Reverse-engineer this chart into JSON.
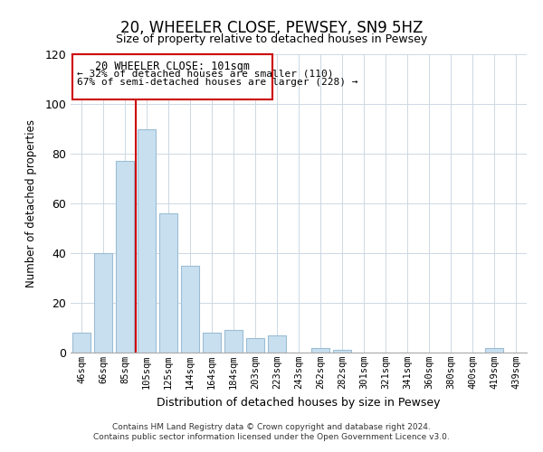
{
  "title": "20, WHEELER CLOSE, PEWSEY, SN9 5HZ",
  "subtitle": "Size of property relative to detached houses in Pewsey",
  "xlabel": "Distribution of detached houses by size in Pewsey",
  "ylabel": "Number of detached properties",
  "bar_labels": [
    "46sqm",
    "66sqm",
    "85sqm",
    "105sqm",
    "125sqm",
    "144sqm",
    "164sqm",
    "184sqm",
    "203sqm",
    "223sqm",
    "243sqm",
    "262sqm",
    "282sqm",
    "301sqm",
    "321sqm",
    "341sqm",
    "360sqm",
    "380sqm",
    "400sqm",
    "419sqm",
    "439sqm"
  ],
  "bar_values": [
    8,
    40,
    77,
    90,
    56,
    35,
    8,
    9,
    6,
    7,
    0,
    2,
    1,
    0,
    0,
    0,
    0,
    0,
    0,
    2,
    0
  ],
  "bar_color": "#c8dff0",
  "bar_edge_color": "#9bbdd4",
  "ylim": [
    0,
    120
  ],
  "yticks": [
    0,
    20,
    40,
    60,
    80,
    100,
    120
  ],
  "vline_color": "#cc0000",
  "annotation_title": "20 WHEELER CLOSE: 101sqm",
  "annotation_line1": "← 32% of detached houses are smaller (110)",
  "annotation_line2": "67% of semi-detached houses are larger (228) →",
  "annotation_box_color": "#ffffff",
  "annotation_box_edge": "#cc0000",
  "footer1": "Contains HM Land Registry data © Crown copyright and database right 2024.",
  "footer2": "Contains public sector information licensed under the Open Government Licence v3.0."
}
